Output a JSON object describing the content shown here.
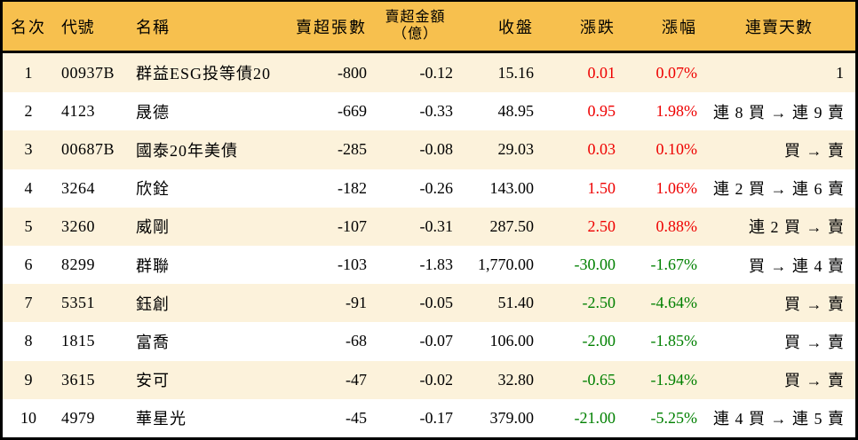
{
  "colors": {
    "header_bg": "#F7C04E",
    "row_alt_bg": "#FCF2DB",
    "row_bg": "#FFFFFF",
    "up_text": "#EE0000",
    "down_text": "#008000",
    "border": "#000000"
  },
  "table": {
    "columns": [
      {
        "key": "rank",
        "label": "名次"
      },
      {
        "key": "code",
        "label": "代號"
      },
      {
        "key": "name",
        "label": "名稱"
      },
      {
        "key": "sell_volume",
        "label": "賣超張數"
      },
      {
        "key": "sell_amount",
        "label": "賣超金額",
        "label2": "（億）"
      },
      {
        "key": "close",
        "label": "收盤"
      },
      {
        "key": "change",
        "label": "漲跌"
      },
      {
        "key": "change_pct",
        "label": "漲幅"
      },
      {
        "key": "streak",
        "label": "連賣天數"
      }
    ],
    "rows": [
      {
        "rank": "1",
        "code": "00937B",
        "name": "群益ESG投等債20",
        "sell_volume": "-800",
        "sell_amount": "-0.12",
        "close": "15.16",
        "change": "0.01",
        "change_pct": "0.07%",
        "streak": "1"
      },
      {
        "rank": "2",
        "code": "4123",
        "name": "晟德",
        "sell_volume": "-669",
        "sell_amount": "-0.33",
        "close": "48.95",
        "change": "0.95",
        "change_pct": "1.98%",
        "streak": "連 8 買 → 連 9 賣"
      },
      {
        "rank": "3",
        "code": "00687B",
        "name": "國泰20年美債",
        "sell_volume": "-285",
        "sell_amount": "-0.08",
        "close": "29.03",
        "change": "0.03",
        "change_pct": "0.10%",
        "streak": "買 → 賣"
      },
      {
        "rank": "4",
        "code": "3264",
        "name": "欣銓",
        "sell_volume": "-182",
        "sell_amount": "-0.26",
        "close": "143.00",
        "change": "1.50",
        "change_pct": "1.06%",
        "streak": "連 2 買 → 連 6 賣"
      },
      {
        "rank": "5",
        "code": "3260",
        "name": "威剛",
        "sell_volume": "-107",
        "sell_amount": "-0.31",
        "close": "287.50",
        "change": "2.50",
        "change_pct": "0.88%",
        "streak": "連 2 買 → 賣"
      },
      {
        "rank": "6",
        "code": "8299",
        "name": "群聯",
        "sell_volume": "-103",
        "sell_amount": "-1.83",
        "close": "1,770.00",
        "change": "-30.00",
        "change_pct": "-1.67%",
        "streak": "買 → 連 4 賣"
      },
      {
        "rank": "7",
        "code": "5351",
        "name": "鈺創",
        "sell_volume": "-91",
        "sell_amount": "-0.05",
        "close": "51.40",
        "change": "-2.50",
        "change_pct": "-4.64%",
        "streak": "買 → 賣"
      },
      {
        "rank": "8",
        "code": "1815",
        "name": "富喬",
        "sell_volume": "-68",
        "sell_amount": "-0.07",
        "close": "106.00",
        "change": "-2.00",
        "change_pct": "-1.85%",
        "streak": "買 → 賣"
      },
      {
        "rank": "9",
        "code": "3615",
        "name": "安可",
        "sell_volume": "-47",
        "sell_amount": "-0.02",
        "close": "32.80",
        "change": "-0.65",
        "change_pct": "-1.94%",
        "streak": "買 → 賣"
      },
      {
        "rank": "10",
        "code": "4979",
        "name": "華星光",
        "sell_volume": "-45",
        "sell_amount": "-0.17",
        "close": "379.00",
        "change": "-21.00",
        "change_pct": "-5.25%",
        "streak": "連 4 買 → 連 5 賣"
      }
    ]
  }
}
